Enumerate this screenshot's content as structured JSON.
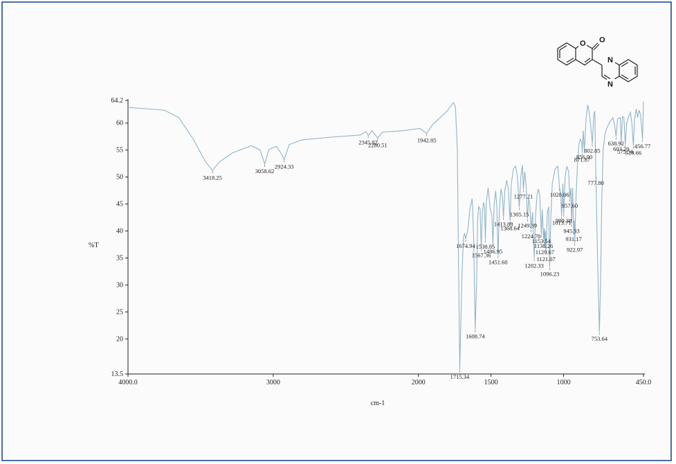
{
  "chart_data": {
    "type": "line",
    "title": "",
    "xlabel": "cm-1",
    "ylabel": "%T",
    "x_reversed": true,
    "xlim": [
      4000.0,
      450.0
    ],
    "ylim": [
      13.5,
      64.2
    ],
    "x_ticks": [
      {
        "value": 4000,
        "label": "4000.0"
      },
      {
        "value": 3000,
        "label": "3000"
      },
      {
        "value": 2000,
        "label": "2000"
      },
      {
        "value": 1500,
        "label": "1500"
      },
      {
        "value": 1000,
        "label": "1000"
      },
      {
        "value": 450,
        "label": "450.0"
      }
    ],
    "y_ticks": [
      {
        "value": 13.5,
        "label": "13.5"
      },
      {
        "value": 20,
        "label": "20"
      },
      {
        "value": 25,
        "label": "25"
      },
      {
        "value": 30,
        "label": "30"
      },
      {
        "value": 35,
        "label": "35"
      },
      {
        "value": 40,
        "label": "40"
      },
      {
        "value": 45,
        "label": "45"
      },
      {
        "value": 50,
        "label": "50"
      },
      {
        "value": 55,
        "label": "55"
      },
      {
        "value": 60,
        "label": "60"
      },
      {
        "value": 64.2,
        "label": "64.2"
      }
    ],
    "series": [
      {
        "color": "#8fb4c9",
        "points": [
          [
            4000,
            62.9
          ],
          [
            3750,
            62.4
          ],
          [
            3650,
            61.0
          ],
          [
            3550,
            57.0
          ],
          [
            3470,
            53.0
          ],
          [
            3418.25,
            51.2
          ],
          [
            3370,
            52.8
          ],
          [
            3280,
            54.5
          ],
          [
            3150,
            55.8
          ],
          [
            3090,
            55.0
          ],
          [
            3058.62,
            52.4
          ],
          [
            3030,
            55.1
          ],
          [
            2980,
            55.7
          ],
          [
            2950,
            54.6
          ],
          [
            2924.33,
            53.2
          ],
          [
            2890,
            56.0
          ],
          [
            2800,
            56.9
          ],
          [
            2600,
            57.4
          ],
          [
            2400,
            57.8
          ],
          [
            2360,
            58.4
          ],
          [
            2345.92,
            57.7
          ],
          [
            2320,
            58.6
          ],
          [
            2280.51,
            57.2
          ],
          [
            2250,
            58.3
          ],
          [
            2100,
            58.6
          ],
          [
            1990,
            59.0
          ],
          [
            1942.85,
            58.1
          ],
          [
            1900,
            59.8
          ],
          [
            1850,
            61.0
          ],
          [
            1800,
            62.3
          ],
          [
            1760,
            63.8
          ],
          [
            1745,
            63.1
          ],
          [
            1732,
            55.0
          ],
          [
            1724,
            35.0
          ],
          [
            1715.34,
            14.3
          ],
          [
            1706,
            25.0
          ],
          [
            1700,
            32.0
          ],
          [
            1690,
            38.8
          ],
          [
            1682,
            39.6
          ],
          [
            1674.94,
            38.5
          ],
          [
            1660,
            40.2
          ],
          [
            1645,
            44.2
          ],
          [
            1630,
            46.0
          ],
          [
            1620,
            39.0
          ],
          [
            1608.74,
            21.8
          ],
          [
            1600,
            30.0
          ],
          [
            1592,
            42.0
          ],
          [
            1585,
            44.6
          ],
          [
            1575,
            44.0
          ],
          [
            1567.36,
            36.8
          ],
          [
            1560,
            43.2
          ],
          [
            1552,
            45.3
          ],
          [
            1545,
            44.5
          ],
          [
            1538.85,
            38.4
          ],
          [
            1532,
            45.4
          ],
          [
            1520,
            48.0
          ],
          [
            1505,
            44.0
          ],
          [
            1494,
            43.0
          ],
          [
            1486.95,
            37.5
          ],
          [
            1478,
            45.0
          ],
          [
            1468,
            47.4
          ],
          [
            1460,
            44.6
          ],
          [
            1451.6,
            35.5
          ],
          [
            1442,
            44.0
          ],
          [
            1432,
            47.8
          ],
          [
            1422,
            46.5
          ],
          [
            1413.88,
            42.6
          ],
          [
            1405,
            47.5
          ],
          [
            1392,
            49.4
          ],
          [
            1380,
            47.8
          ],
          [
            1368.64,
            41.8
          ],
          [
            1360,
            48.8
          ],
          [
            1345,
            51.6
          ],
          [
            1330,
            52.0
          ],
          [
            1318,
            50.0
          ],
          [
            1305.15,
            44.4
          ],
          [
            1295,
            50.0
          ],
          [
            1284,
            52.2
          ],
          [
            1277.21,
            47.7
          ],
          [
            1268,
            51.0
          ],
          [
            1258,
            48.5
          ],
          [
            1249.39,
            42.3
          ],
          [
            1240,
            46.0
          ],
          [
            1232,
            44.6
          ],
          [
            1224.78,
            40.3
          ],
          [
            1214,
            43.5
          ],
          [
            1202.33,
            34.9
          ],
          [
            1194,
            42.6
          ],
          [
            1184,
            46.5
          ],
          [
            1175,
            47.8
          ],
          [
            1165,
            46.7
          ],
          [
            1153.54,
            39.4
          ],
          [
            1147,
            44.0
          ],
          [
            1138.26,
            38.5
          ],
          [
            1133,
            40.5
          ],
          [
            1129.67,
            37.4
          ],
          [
            1125,
            40.0
          ],
          [
            1121.07,
            36.1
          ],
          [
            1112,
            43.5
          ],
          [
            1103,
            44.5
          ],
          [
            1096.23,
            33.3
          ],
          [
            1088,
            42.5
          ],
          [
            1078,
            48.8
          ],
          [
            1058,
            51.5
          ],
          [
            1040,
            52.0
          ],
          [
            1028.06,
            48.0
          ],
          [
            1020,
            46.8
          ],
          [
            1013.71,
            42.8
          ],
          [
            1005,
            48.8
          ],
          [
            999.38,
            43.2
          ],
          [
            990,
            50.0
          ],
          [
            978,
            52.0
          ],
          [
            965,
            51.0
          ],
          [
            957.6,
            46.0
          ],
          [
            950,
            48.0
          ],
          [
            945.33,
            41.3
          ],
          [
            938,
            48.0
          ],
          [
            931.17,
            39.8
          ],
          [
            927,
            42.0
          ],
          [
            922.97,
            37.8
          ],
          [
            915,
            46.0
          ],
          [
            905,
            52.0
          ],
          [
            895,
            56.0
          ],
          [
            885,
            57.0
          ],
          [
            875,
            56.4
          ],
          [
            871.87,
            54.5
          ],
          [
            865,
            58.6
          ],
          [
            856.9,
            55.0
          ],
          [
            846,
            60.5
          ],
          [
            834,
            63.4
          ],
          [
            825,
            62.2
          ],
          [
            815,
            60.0
          ],
          [
            802.85,
            56.2
          ],
          [
            792,
            61.6
          ],
          [
            785,
            62.2
          ],
          [
            777.8,
            50.2
          ],
          [
            770,
            40.0
          ],
          [
            760,
            28.0
          ],
          [
            753.64,
            21.3
          ],
          [
            746,
            30.0
          ],
          [
            738,
            45.0
          ],
          [
            728,
            55.0
          ],
          [
            715,
            58.0
          ],
          [
            700,
            59.2
          ],
          [
            690,
            59.8
          ],
          [
            675,
            60.5
          ],
          [
            660,
            61.0
          ],
          [
            648,
            59.5
          ],
          [
            638.92,
            57.5
          ],
          [
            628,
            60.8
          ],
          [
            610,
            61.0
          ],
          [
            603.2,
            56.5
          ],
          [
            595,
            61.2
          ],
          [
            585,
            61.0
          ],
          [
            575.56,
            56.0
          ],
          [
            566,
            60.0
          ],
          [
            555,
            61.0
          ],
          [
            540,
            62.0
          ],
          [
            530,
            60.0
          ],
          [
            519.66,
            55.8
          ],
          [
            512,
            60.5
          ],
          [
            500,
            62.6
          ],
          [
            490,
            61.0
          ],
          [
            480,
            62.4
          ],
          [
            470,
            61.5
          ],
          [
            462,
            59.0
          ],
          [
            456.77,
            57.0
          ],
          [
            452,
            62.0
          ],
          [
            450,
            64.0
          ]
        ]
      }
    ],
    "peak_labels": [
      {
        "x": 3418.25,
        "y": 51.2,
        "text": "3418.25"
      },
      {
        "x": 3058.62,
        "y": 52.4,
        "text": "3058.62"
      },
      {
        "x": 2924.33,
        "y": 53.2,
        "text": "2924.33"
      },
      {
        "x": 2345.92,
        "y": 57.7,
        "text": "2345.92"
      },
      {
        "x": 2280.51,
        "y": 57.2,
        "text": "2280.51"
      },
      {
        "x": 1942.85,
        "y": 58.1,
        "text": "1942.85"
      },
      {
        "x": 1715.34,
        "y": 14.3,
        "text": "1715.34"
      },
      {
        "x": 1674.94,
        "y": 38.5,
        "text": "1674.94"
      },
      {
        "x": 1608.74,
        "y": 21.8,
        "text": "1608.74"
      },
      {
        "x": 1567.36,
        "y": 36.8,
        "text": "1567.36"
      },
      {
        "x": 1538.85,
        "y": 38.4,
        "text": "1538.85"
      },
      {
        "x": 1486.95,
        "y": 37.5,
        "text": "1486.95"
      },
      {
        "x": 1451.6,
        "y": 35.5,
        "text": "1451.60"
      },
      {
        "x": 1413.88,
        "y": 42.6,
        "text": "1413.88"
      },
      {
        "x": 1368.64,
        "y": 41.8,
        "text": "1368.64"
      },
      {
        "x": 1305.15,
        "y": 44.4,
        "text": "1305.15"
      },
      {
        "x": 1277.21,
        "y": 47.7,
        "text": "1277.21"
      },
      {
        "x": 1249.39,
        "y": 42.3,
        "text": "1249.39"
      },
      {
        "x": 1224.78,
        "y": 40.3,
        "text": "1224.78"
      },
      {
        "x": 1202.33,
        "y": 34.9,
        "text": "1202.33"
      },
      {
        "x": 1153.54,
        "y": 39.4,
        "text": "1153.54"
      },
      {
        "x": 1138.26,
        "y": 38.5,
        "text": "1138.26"
      },
      {
        "x": 1129.67,
        "y": 37.4,
        "text": "1129.67"
      },
      {
        "x": 1121.07,
        "y": 36.1,
        "text": "1121.07"
      },
      {
        "x": 1096.23,
        "y": 33.3,
        "text": "1096.23"
      },
      {
        "x": 1028.06,
        "y": 48.0,
        "text": "1028.06"
      },
      {
        "x": 1013.71,
        "y": 42.8,
        "text": "1013.71"
      },
      {
        "x": 999.38,
        "y": 43.2,
        "text": "999.38"
      },
      {
        "x": 957.6,
        "y": 46.0,
        "text": "957.60"
      },
      {
        "x": 945.33,
        "y": 41.3,
        "text": "945.33"
      },
      {
        "x": 931.17,
        "y": 39.8,
        "text": "931.17"
      },
      {
        "x": 922.97,
        "y": 37.8,
        "text": "922.97"
      },
      {
        "x": 871.87,
        "y": 54.5,
        "text": "871.87"
      },
      {
        "x": 856.9,
        "y": 55.0,
        "text": "856.90"
      },
      {
        "x": 802.85,
        "y": 56.2,
        "text": "802.85"
      },
      {
        "x": 777.8,
        "y": 50.2,
        "text": "777.80"
      },
      {
        "x": 753.64,
        "y": 21.3,
        "text": "753.64"
      },
      {
        "x": 638.92,
        "y": 57.5,
        "text": "638.92"
      },
      {
        "x": 603.2,
        "y": 56.5,
        "text": "603.20"
      },
      {
        "x": 575.56,
        "y": 56.0,
        "text": "575.56"
      },
      {
        "x": 519.66,
        "y": 55.8,
        "text": "519.66"
      },
      {
        "x": 456.77,
        "y": 57.0,
        "text": "456.77"
      }
    ]
  },
  "molecule": {
    "heteroatom_labels": [
      "O",
      "O",
      "N",
      "N"
    ]
  }
}
